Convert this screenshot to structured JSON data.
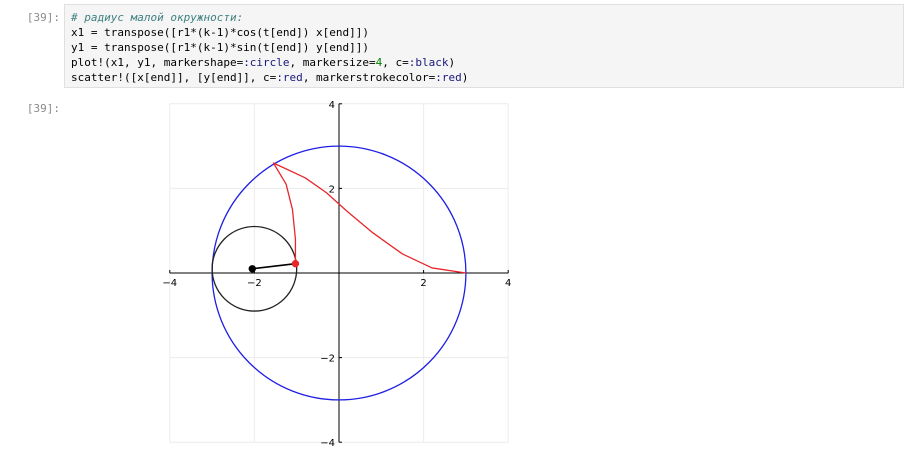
{
  "input_cell": {
    "prompt": "[39]:",
    "lines": [
      {
        "parts": [
          {
            "t": "# радиус малой окружности:",
            "c": "cm"
          }
        ]
      },
      {
        "parts": [
          {
            "t": "x1 = transpose([r1*(k-1)*cos(t[end]) x[end]])",
            "c": ""
          }
        ]
      },
      {
        "parts": [
          {
            "t": "y1 = transpose([r1*(k-1)*sin(t[end]) y[end]])",
            "c": ""
          }
        ]
      },
      {
        "parts": [
          {
            "t": "plot!(x1, y1, markershape=",
            "c": ""
          },
          {
            "t": ":circle",
            "c": "kw"
          },
          {
            "t": ", markersize=",
            "c": ""
          },
          {
            "t": "4",
            "c": "num"
          },
          {
            "t": ", c=",
            "c": ""
          },
          {
            "t": ":black",
            "c": "kw"
          },
          {
            "t": ")",
            "c": ""
          }
        ]
      },
      {
        "parts": [
          {
            "t": "scatter!([x[end]], [y[end]], c=",
            "c": ""
          },
          {
            "t": ":red",
            "c": "kw"
          },
          {
            "t": ", markerstrokecolor=",
            "c": ""
          },
          {
            "t": ":red",
            "c": "kw"
          },
          {
            "t": ")",
            "c": ""
          }
        ]
      }
    ]
  },
  "output_cell": {
    "prompt": "[39]:"
  },
  "chart_data": {
    "type": "line",
    "xlim": [
      -4,
      4
    ],
    "ylim": [
      -4,
      4
    ],
    "x_ticks": [
      -4,
      -2,
      2,
      4
    ],
    "y_ticks": [
      -4,
      -2,
      2,
      4
    ],
    "x_tick_labels": [
      "−4",
      "−2",
      "2",
      "4"
    ],
    "y_tick_labels": [
      "−4",
      "−2",
      "2",
      "4"
    ],
    "grid": true,
    "legend": "none",
    "colors": {
      "big_circle": "#1f1fe6",
      "small_circle": "#222222",
      "curve": "#e8262b",
      "radius": "#000000",
      "point": "#e8262b"
    },
    "series": [
      {
        "kind": "circle",
        "center": [
          0,
          0
        ],
        "r": 3
      },
      {
        "kind": "circle",
        "center": [
          -2,
          0.1
        ],
        "r": 1
      },
      {
        "kind": "curve",
        "points": [
          [
            3,
            0
          ],
          [
            2.2,
            0.12
          ],
          [
            1.5,
            0.45
          ],
          [
            0.8,
            0.95
          ],
          [
            0.2,
            1.45
          ],
          [
            -0.3,
            1.9
          ],
          [
            -0.8,
            2.25
          ],
          [
            -1.55,
            2.6
          ],
          [
            -1.25,
            2.1
          ],
          [
            -1.1,
            1.5
          ],
          [
            -1.03,
            0.8
          ],
          [
            -1.03,
            0.22
          ]
        ]
      },
      {
        "kind": "segment",
        "x": [
          -2.05,
          -1.03
        ],
        "y": [
          0.1,
          0.22
        ]
      },
      {
        "kind": "point",
        "x": -2.05,
        "y": 0.1,
        "color": "#000000"
      },
      {
        "kind": "point",
        "x": -1.03,
        "y": 0.22,
        "color": "#e8262b"
      }
    ]
  }
}
